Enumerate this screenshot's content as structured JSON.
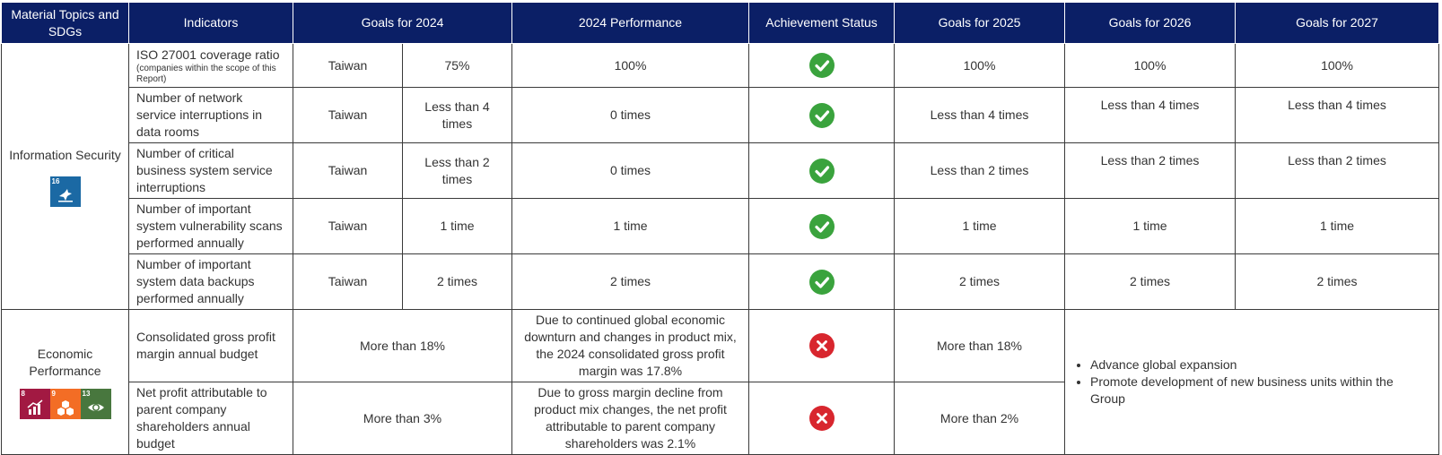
{
  "header": {
    "topics": "Material Topics and SDGs",
    "indicators": "Indicators",
    "goals_2024": "Goals for 2024",
    "performance_2024": "2024 Performance",
    "status": "Achievement Status",
    "goals_2025": "Goals for 2025",
    "goals_2026": "Goals for 2026",
    "goals_2027": "Goals for 2027"
  },
  "colors": {
    "header_bg": "#0b1f66",
    "achieved": "#3aa33d",
    "not_achieved": "#d8262e"
  },
  "infosec": {
    "topic": "Information Security",
    "sdgs": [
      {
        "number": "16",
        "color": "#1b69a4",
        "icon": "dove-icon"
      }
    ],
    "rows": [
      {
        "indicator": "ISO 27001 coverage ratio",
        "note": "(companies within the scope of this Report)",
        "region": "Taiwan",
        "goal_2024": "75%",
        "performance": "100%",
        "status": "achieved",
        "goal_2025": "100%",
        "goal_2026": "100%",
        "goal_2027": "100%"
      },
      {
        "indicator": "Number of network service interruptions in data rooms",
        "region": "Taiwan",
        "goal_2024": "Less than 4 times",
        "performance": "0 times",
        "status": "achieved",
        "goal_2025": "Less than 4 times",
        "goal_2026": "Less than 4 times",
        "goal_2027": "Less than 4 times"
      },
      {
        "indicator": "Number of critical business system service interruptions",
        "region": "Taiwan",
        "goal_2024": "Less than 2 times",
        "performance": "0 times",
        "status": "achieved",
        "goal_2025": "Less than 2 times",
        "goal_2026": "Less than 2 times",
        "goal_2027": "Less than 2 times"
      },
      {
        "indicator": "Number of important system vulnerability scans performed annually",
        "region": "Taiwan",
        "goal_2024": "1 time",
        "performance": "1 time",
        "status": "achieved",
        "goal_2025": "1 time",
        "goal_2026": "1 time",
        "goal_2027": "1 time"
      },
      {
        "indicator": "Number of important system data backups performed annually",
        "region": "Taiwan",
        "goal_2024": "2 times",
        "performance": "2 times",
        "status": "achieved",
        "goal_2025": "2 times",
        "goal_2026": "2 times",
        "goal_2027": "2 times"
      }
    ]
  },
  "economic": {
    "topic": "Economic Performance",
    "sdgs": [
      {
        "number": "8",
        "color": "#a21942",
        "icon": "growth-chart-icon"
      },
      {
        "number": "9",
        "color": "#f36d25",
        "icon": "cubes-icon"
      },
      {
        "number": "13",
        "color": "#48773e",
        "icon": "eye-globe-icon"
      }
    ],
    "rows": [
      {
        "indicator": "Consolidated gross profit margin annual budget",
        "goal_2024": "More than 18%",
        "performance": "Due to continued global economic downturn and changes in product mix, the 2024 consolidated gross profit margin was 17.8%",
        "status": "not-achieved",
        "goal_2025": "More than 18%"
      },
      {
        "indicator": "Net profit attributable to parent company shareholders annual budget",
        "goal_2024": "More than 3%",
        "performance": "Due to gross margin decline from product mix changes, the net profit attributable to parent company shareholders was 2.1%",
        "status": "not-achieved",
        "goal_2025": "More than 2%"
      }
    ],
    "future_goals": [
      "Advance global expansion",
      "Promote development of new business units within the Group"
    ]
  }
}
